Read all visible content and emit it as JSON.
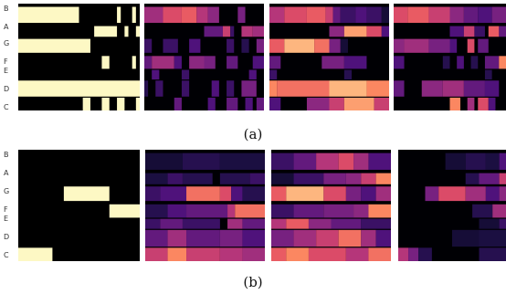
{
  "row_labels": [
    "B",
    "A",
    "G",
    "F",
    "E",
    "D",
    "C"
  ],
  "captions": {
    "a": "(a)",
    "b": "(b)"
  },
  "colormap": [
    "#000004",
    "#1c1044",
    "#4f127b",
    "#812581",
    "#b5367a",
    "#e55064",
    "#fb8761",
    "#fec287",
    "#fcfdbf"
  ],
  "chart_data": [
    {
      "type": "heatmap",
      "label": "(a)",
      "panel": 1,
      "colormap": "binary-cream",
      "rows": [
        "B",
        "A",
        "G",
        "F",
        "E",
        "D",
        "C"
      ],
      "columns": 32,
      "segments": {
        "B": [
          [
            0,
            16,
            1.0
          ],
          [
            26,
            27,
            1.0
          ],
          [
            30,
            31,
            1.0
          ]
        ],
        "A": [
          [
            20,
            26,
            1.0
          ],
          [
            28,
            29,
            1.0
          ],
          [
            31,
            32,
            1.0
          ]
        ],
        "G": [
          [
            0,
            19,
            1.0
          ]
        ],
        "F": [
          [
            22,
            24,
            1.0
          ],
          [
            30,
            31,
            1.0
          ]
        ],
        "E": [],
        "D": [
          [
            0,
            32,
            1.0
          ]
        ],
        "C": [
          [
            17,
            19,
            1.0
          ],
          [
            22,
            24,
            1.0
          ],
          [
            26,
            28,
            1.0
          ],
          [
            31,
            32,
            1.0
          ]
        ]
      }
    },
    {
      "type": "heatmap",
      "label": "(a)",
      "panel": 2,
      "colormap": "magma",
      "rows": [
        "B",
        "A",
        "G",
        "F",
        "E",
        "D",
        "C"
      ],
      "columns": 32,
      "segments": {
        "B": [
          [
            0,
            5,
            0.45
          ],
          [
            5,
            10,
            0.6
          ],
          [
            10,
            14,
            0.65
          ],
          [
            14,
            17,
            0.5
          ],
          [
            17,
            20,
            0.4
          ],
          [
            25,
            27,
            0.35
          ]
        ],
        "A": [
          [
            16,
            21,
            0.3
          ],
          [
            21,
            23,
            0.55
          ],
          [
            23,
            24,
            0.2
          ],
          [
            26,
            29,
            0.5
          ],
          [
            29,
            32,
            0.45
          ]
        ],
        "G": [
          [
            0,
            2,
            0.2
          ],
          [
            5,
            9,
            0.2
          ],
          [
            12,
            15,
            0.25
          ],
          [
            22,
            24,
            0.2
          ],
          [
            26,
            28,
            0.15
          ],
          [
            30,
            32,
            0.35
          ]
        ],
        "F": [
          [
            0,
            2,
            0.3
          ],
          [
            2,
            8,
            0.45
          ],
          [
            8,
            10,
            0.25
          ],
          [
            12,
            16,
            0.4
          ],
          [
            16,
            19,
            0.35
          ],
          [
            22,
            25,
            0.3
          ],
          [
            29,
            32,
            0.25
          ]
        ],
        "E": [
          [
            2,
            4,
            0.25
          ],
          [
            10,
            12,
            0.2
          ],
          [
            28,
            30,
            0.25
          ]
        ],
        "D": [
          [
            0,
            1,
            0.15
          ],
          [
            3,
            5,
            0.2
          ],
          [
            10,
            12,
            0.2
          ],
          [
            18,
            20,
            0.25
          ],
          [
            22,
            24,
            0.2
          ],
          [
            26,
            30,
            0.35
          ]
        ],
        "C": [
          [
            8,
            10,
            0.3
          ],
          [
            17,
            19,
            0.25
          ],
          [
            22,
            25,
            0.3
          ],
          [
            27,
            29,
            0.25
          ],
          [
            30,
            32,
            0.3
          ]
        ]
      }
    },
    {
      "type": "heatmap",
      "label": "(a)",
      "panel": 3,
      "colormap": "magma",
      "rows": [
        "B",
        "A",
        "G",
        "F",
        "E",
        "D",
        "C"
      ],
      "columns": 32,
      "segments": {
        "B": [
          [
            0,
            4,
            0.5
          ],
          [
            4,
            10,
            0.6
          ],
          [
            10,
            15,
            0.65
          ],
          [
            15,
            17,
            0.55
          ],
          [
            17,
            19,
            0.3
          ],
          [
            19,
            23,
            0.2
          ],
          [
            23,
            26,
            0.25
          ],
          [
            26,
            30,
            0.2
          ],
          [
            30,
            32,
            0.1
          ]
        ],
        "A": [
          [
            16,
            20,
            0.4
          ],
          [
            20,
            26,
            0.8
          ],
          [
            26,
            30,
            0.6
          ],
          [
            30,
            32,
            0.25
          ]
        ],
        "G": [
          [
            0,
            4,
            0.65
          ],
          [
            4,
            12,
            0.85
          ],
          [
            12,
            16,
            0.7
          ],
          [
            16,
            19,
            0.35
          ],
          [
            19,
            21,
            0.1
          ]
        ],
        "F": [
          [
            0,
            3,
            0.3
          ],
          [
            14,
            20,
            0.35
          ],
          [
            20,
            26,
            0.25
          ]
        ],
        "E": [
          [
            0,
            2,
            0.2
          ],
          [
            20,
            22,
            0.15
          ]
        ],
        "D": [
          [
            0,
            2,
            0.75
          ],
          [
            2,
            16,
            0.7
          ],
          [
            16,
            26,
            0.85
          ],
          [
            26,
            32,
            0.75
          ]
        ],
        "C": [
          [
            0,
            3,
            0.25
          ],
          [
            10,
            16,
            0.4
          ],
          [
            16,
            20,
            0.55
          ],
          [
            20,
            28,
            0.8
          ],
          [
            28,
            32,
            0.55
          ]
        ]
      }
    },
    {
      "type": "heatmap",
      "label": "(a)",
      "panel": 4,
      "colormap": "magma",
      "rows": [
        "B",
        "A",
        "G",
        "F",
        "E",
        "D",
        "C"
      ],
      "columns": 32,
      "segments": {
        "B": [
          [
            0,
            4,
            0.6
          ],
          [
            4,
            10,
            0.65
          ],
          [
            10,
            16,
            0.55
          ],
          [
            16,
            20,
            0.4
          ],
          [
            20,
            24,
            0.3
          ],
          [
            24,
            28,
            0.25
          ],
          [
            28,
            32,
            0.35
          ]
        ],
        "A": [
          [
            16,
            20,
            0.25
          ],
          [
            20,
            23,
            0.55
          ],
          [
            23,
            26,
            0.2
          ],
          [
            27,
            30,
            0.65
          ],
          [
            30,
            32,
            0.3
          ]
        ],
        "G": [
          [
            0,
            3,
            0.4
          ],
          [
            3,
            10,
            0.45
          ],
          [
            10,
            16,
            0.35
          ],
          [
            16,
            18,
            0.25
          ],
          [
            21,
            23,
            0.6
          ],
          [
            24,
            27,
            0.3
          ]
        ],
        "F": [
          [
            0,
            3,
            0.25
          ],
          [
            14,
            16,
            0.15
          ],
          [
            18,
            20,
            0.25
          ],
          [
            22,
            24,
            0.15
          ],
          [
            26,
            30,
            0.3
          ],
          [
            30,
            32,
            0.75
          ]
        ],
        "E": [
          [
            26,
            28,
            0.15
          ]
        ],
        "D": [
          [
            0,
            3,
            0.3
          ],
          [
            8,
            14,
            0.4
          ],
          [
            14,
            20,
            0.45
          ],
          [
            20,
            26,
            0.3
          ],
          [
            26,
            30,
            0.25
          ]
        ],
        "C": [
          [
            16,
            19,
            0.75
          ],
          [
            21,
            23,
            0.45
          ],
          [
            24,
            27,
            0.6
          ],
          [
            27,
            29,
            0.25
          ]
        ]
      }
    },
    {
      "type": "heatmap",
      "label": "(b)",
      "panel": 1,
      "colormap": "binary-cream",
      "rows": [
        "B",
        "A",
        "G",
        "F",
        "E",
        "D",
        "C"
      ],
      "columns": 32,
      "segments": {
        "B": [],
        "A": [],
        "G": [
          [
            12,
            24,
            1.0
          ]
        ],
        "F": [
          [
            24,
            32,
            1.0
          ]
        ],
        "E": [],
        "D": [],
        "C": [
          [
            0,
            9,
            1.0
          ]
        ]
      }
    },
    {
      "type": "heatmap",
      "label": "(b)",
      "panel": 2,
      "colormap": "magma",
      "rows": [
        "B",
        "A",
        "G",
        "F",
        "E",
        "D",
        "C"
      ],
      "columns": 32,
      "segments": {
        "B": [
          [
            0,
            10,
            0.1
          ],
          [
            10,
            20,
            0.15
          ],
          [
            20,
            32,
            0.12
          ]
        ],
        "A": [
          [
            0,
            6,
            0.12
          ],
          [
            6,
            10,
            0.2
          ],
          [
            10,
            18,
            0.15
          ],
          [
            20,
            28,
            0.15
          ],
          [
            28,
            32,
            0.2
          ]
        ],
        "G": [
          [
            0,
            4,
            0.2
          ],
          [
            4,
            11,
            0.25
          ],
          [
            11,
            20,
            0.7
          ],
          [
            20,
            23,
            0.6
          ],
          [
            23,
            26,
            0.25
          ],
          [
            26,
            32,
            0.15
          ]
        ],
        "F": [
          [
            0,
            6,
            0.15
          ],
          [
            6,
            11,
            0.25
          ],
          [
            11,
            22,
            0.3
          ],
          [
            22,
            24,
            0.5
          ],
          [
            24,
            32,
            0.7
          ]
        ],
        "E": [
          [
            0,
            4,
            0.2
          ],
          [
            4,
            10,
            0.3
          ],
          [
            10,
            20,
            0.2
          ],
          [
            22,
            26,
            0.45
          ],
          [
            26,
            32,
            0.3
          ]
        ],
        "D": [
          [
            0,
            6,
            0.3
          ],
          [
            6,
            11,
            0.45
          ],
          [
            11,
            20,
            0.3
          ],
          [
            20,
            26,
            0.35
          ],
          [
            26,
            32,
            0.25
          ]
        ],
        "C": [
          [
            0,
            6,
            0.55
          ],
          [
            6,
            11,
            0.75
          ],
          [
            11,
            20,
            0.55
          ],
          [
            20,
            26,
            0.5
          ],
          [
            26,
            32,
            0.45
          ]
        ]
      }
    },
    {
      "type": "heatmap",
      "label": "(b)",
      "panel": 3,
      "colormap": "magma",
      "rows": [
        "B",
        "A",
        "G",
        "F",
        "E",
        "D",
        "C"
      ],
      "columns": 32,
      "segments": {
        "B": [
          [
            0,
            6,
            0.2
          ],
          [
            6,
            12,
            0.3
          ],
          [
            12,
            18,
            0.5
          ],
          [
            18,
            22,
            0.6
          ],
          [
            22,
            26,
            0.45
          ],
          [
            26,
            32,
            0.25
          ]
        ],
        "A": [
          [
            0,
            6,
            0.1
          ],
          [
            6,
            14,
            0.2
          ],
          [
            14,
            20,
            0.35
          ],
          [
            20,
            24,
            0.4
          ],
          [
            24,
            28,
            0.55
          ],
          [
            28,
            32,
            0.75
          ]
        ],
        "G": [
          [
            0,
            4,
            0.65
          ],
          [
            4,
            14,
            0.85
          ],
          [
            14,
            20,
            0.6
          ],
          [
            20,
            24,
            0.35
          ],
          [
            24,
            28,
            0.25
          ],
          [
            28,
            32,
            0.45
          ]
        ],
        "F": [
          [
            0,
            6,
            0.2
          ],
          [
            6,
            14,
            0.3
          ],
          [
            14,
            22,
            0.35
          ],
          [
            22,
            26,
            0.4
          ],
          [
            26,
            32,
            0.75
          ]
        ],
        "E": [
          [
            0,
            4,
            0.5
          ],
          [
            4,
            10,
            0.65
          ],
          [
            10,
            16,
            0.4
          ],
          [
            16,
            24,
            0.3
          ],
          [
            24,
            32,
            0.2
          ]
        ],
        "D": [
          [
            0,
            6,
            0.35
          ],
          [
            6,
            12,
            0.45
          ],
          [
            12,
            18,
            0.55
          ],
          [
            18,
            24,
            0.7
          ],
          [
            24,
            28,
            0.45
          ],
          [
            28,
            32,
            0.25
          ]
        ],
        "C": [
          [
            0,
            4,
            0.65
          ],
          [
            4,
            10,
            0.75
          ],
          [
            10,
            20,
            0.6
          ],
          [
            20,
            26,
            0.5
          ],
          [
            26,
            32,
            0.7
          ]
        ]
      }
    },
    {
      "type": "heatmap",
      "label": "(b)",
      "panel": 4,
      "colormap": "magma",
      "rows": [
        "B",
        "A",
        "G",
        "F",
        "E",
        "D",
        "C"
      ],
      "columns": 32,
      "segments": {
        "B": [
          [
            14,
            20,
            0.1
          ],
          [
            20,
            26,
            0.15
          ],
          [
            26,
            30,
            0.12
          ],
          [
            30,
            32,
            0.25
          ]
        ],
        "A": [
          [
            20,
            24,
            0.15
          ],
          [
            24,
            30,
            0.3
          ],
          [
            30,
            32,
            0.55
          ]
        ],
        "G": [
          [
            8,
            12,
            0.35
          ],
          [
            12,
            20,
            0.6
          ],
          [
            20,
            26,
            0.45
          ],
          [
            26,
            30,
            0.25
          ],
          [
            30,
            32,
            0.4
          ]
        ],
        "F": [
          [
            22,
            28,
            0.15
          ],
          [
            28,
            32,
            0.45
          ]
        ],
        "E": [
          [
            24,
            30,
            0.1
          ],
          [
            30,
            32,
            0.2
          ]
        ],
        "D": [
          [
            16,
            24,
            0.1
          ],
          [
            24,
            32,
            0.12
          ]
        ],
        "C": [
          [
            0,
            3,
            0.5
          ],
          [
            3,
            6,
            0.35
          ],
          [
            6,
            10,
            0.15
          ],
          [
            24,
            32,
            0.15
          ]
        ]
      }
    }
  ]
}
